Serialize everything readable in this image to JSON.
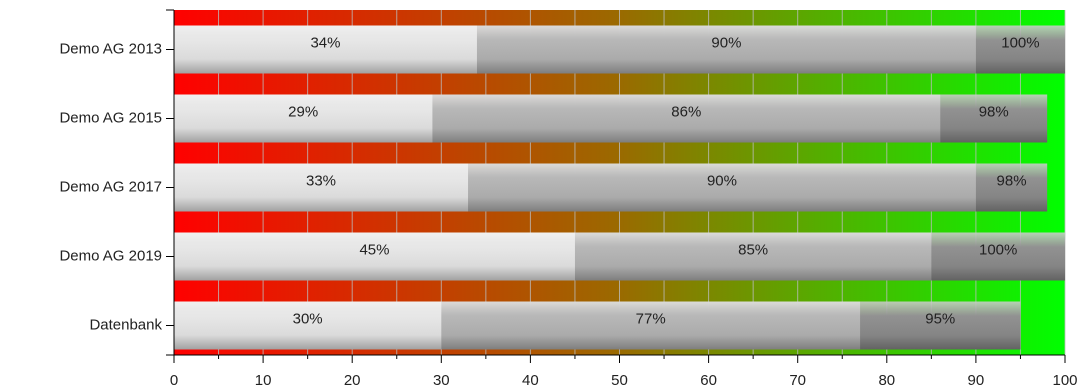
{
  "chart_data": {
    "type": "overlap_bar_h",
    "categories": [
      "Demo AG 2013",
      "Demo AG 2015",
      "Demo AG 2017",
      "Demo AG 2019",
      "Datenbank"
    ],
    "series": [
      {
        "color": "#e6e6e6",
        "values": [
          34,
          29,
          33,
          45,
          30
        ],
        "value_labels": [
          "34%",
          "29%",
          "33%",
          "45%",
          "30%"
        ]
      },
      {
        "color": "#b4b4b4",
        "values": [
          90,
          86,
          90,
          85,
          77
        ],
        "value_labels": [
          "90%",
          "86%",
          "90%",
          "85%",
          "77%"
        ]
      },
      {
        "color": "#8c8c8c",
        "values": [
          100,
          98,
          98,
          100,
          95
        ],
        "value_labels": [
          "100%",
          "98%",
          "98%",
          "100%",
          "95%"
        ]
      }
    ],
    "xlim": [
      0,
      100
    ],
    "xticks": [
      0,
      10,
      20,
      30,
      40,
      50,
      60,
      70,
      80,
      90,
      100
    ],
    "xminorticks": [
      5,
      15,
      25,
      35,
      45,
      55,
      65,
      75,
      85,
      95
    ],
    "background_colors": [
      "#ff0000",
      "#9a6a00",
      "#00ff00"
    ],
    "grid": true
  }
}
